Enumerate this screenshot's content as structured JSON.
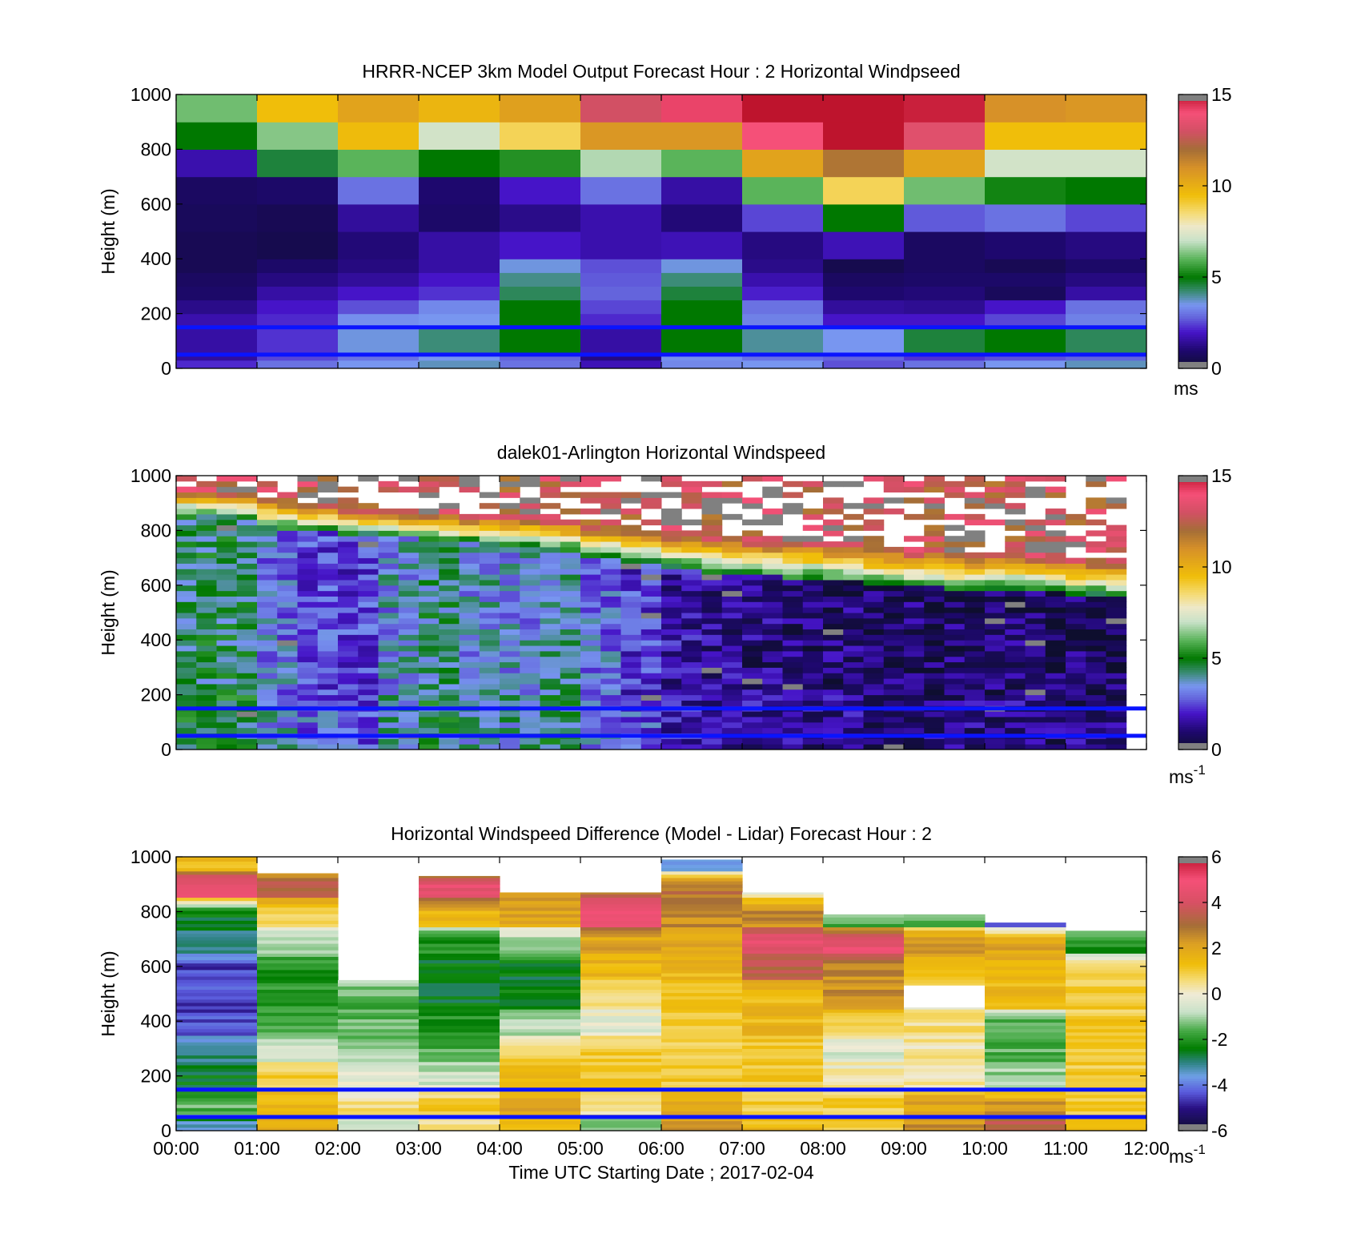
{
  "chart_data": [
    {
      "type": "heatmap",
      "title": "HRRR-NCEP 3km Model Output   Forecast Hour : 2 Horizontal Windpseed",
      "ylabel": "Height (m)",
      "ylim": [
        0,
        1000
      ],
      "yticks": [
        "0",
        "200",
        "400",
        "600",
        "800",
        "1000"
      ],
      "x_hours": [
        0,
        12
      ],
      "colorbar": {
        "ticks": [
          "0",
          "5",
          "10",
          "15"
        ],
        "range": [
          0,
          15
        ],
        "unit": "ms"
      },
      "reference_lines_m": [
        50,
        150
      ],
      "bands_m": [
        [
          0,
          30
        ],
        [
          30,
          50
        ],
        [
          50,
          150
        ],
        [
          150,
          200
        ],
        [
          200,
          250
        ],
        [
          250,
          300
        ],
        [
          300,
          350
        ],
        [
          350,
          400
        ],
        [
          400,
          500
        ],
        [
          500,
          600
        ],
        [
          600,
          700
        ],
        [
          700,
          800
        ],
        [
          800,
          900
        ],
        [
          900,
          1000
        ]
      ],
      "values": [
        [
          2.2,
          3.0,
          3.5,
          3.8,
          3.0,
          1.8,
          3.3,
          3.5,
          2.6,
          3.0,
          3.5,
          3.8
        ],
        [
          1.5,
          2.5,
          3.0,
          3.5,
          2.8,
          1.2,
          3.4,
          3.0,
          2.8,
          2.3,
          2.6,
          2.8
        ],
        [
          1.6,
          2.3,
          3.6,
          4.2,
          5.0,
          1.6,
          5.0,
          4.0,
          3.5,
          4.6,
          5.0,
          4.4
        ],
        [
          1.7,
          2.2,
          3.4,
          3.5,
          5.0,
          2.2,
          5.0,
          3.2,
          2.0,
          2.0,
          2.5,
          3.2
        ],
        [
          1.3,
          2.0,
          2.6,
          3.3,
          5.0,
          2.5,
          5.0,
          3.0,
          1.5,
          1.4,
          2.0,
          3.0
        ],
        [
          0.9,
          1.6,
          2.0,
          2.3,
          4.4,
          2.8,
          4.6,
          2.1,
          1.0,
          1.1,
          0.7,
          1.6
        ],
        [
          0.8,
          1.2,
          1.5,
          2.0,
          4.1,
          2.7,
          4.2,
          1.7,
          0.8,
          0.9,
          0.9,
          1.2
        ],
        [
          0.6,
          0.9,
          1.2,
          1.6,
          3.6,
          2.6,
          3.6,
          1.3,
          0.5,
          0.8,
          0.6,
          0.9
        ],
        [
          0.6,
          0.5,
          1.1,
          1.6,
          2.0,
          1.7,
          1.8,
          1.2,
          1.8,
          0.8,
          1.0,
          1.2
        ],
        [
          0.7,
          0.6,
          1.5,
          0.9,
          1.3,
          1.7,
          1.1,
          2.5,
          5.0,
          2.7,
          3.0,
          2.5
        ],
        [
          0.8,
          0.9,
          3.0,
          1.0,
          2.0,
          3.0,
          1.6,
          6.0,
          8.8,
          6.2,
          5.2,
          5.0
        ],
        [
          1.7,
          4.6,
          6.0,
          5.0,
          5.4,
          6.8,
          6.0,
          10.4,
          11.8,
          10.4,
          7.2,
          7.2
        ],
        [
          5.0,
          6.4,
          9.6,
          7.2,
          8.8,
          10.8,
          10.8,
          14.0,
          15.4,
          13.4,
          9.5,
          9.5
        ],
        [
          6.2,
          9.5,
          10.4,
          9.8,
          10.5,
          13.0,
          14.2,
          15.4,
          15.4,
          14.8,
          11.0,
          10.8
        ]
      ]
    },
    {
      "type": "heatmap",
      "title": "dalek01-Arlington  Horizontal Windspeed",
      "ylabel": "Height (m)",
      "ylim": [
        0,
        1000
      ],
      "yticks": [
        "0",
        "200",
        "400",
        "600",
        "800",
        "1000"
      ],
      "x_hours": [
        0,
        12
      ],
      "colorbar": {
        "ticks": [
          "0",
          "5",
          "10",
          "15"
        ],
        "range": [
          0,
          15
        ],
        "unit": "ms",
        "unit_exp": "-1"
      },
      "reference_lines_m": [
        50,
        150
      ],
      "time_bins": 48,
      "bin_minutes": 15,
      "data_end_hour": 11.75,
      "column_top_m": [
        1000,
        1000,
        1000,
        1000,
        1000,
        1000,
        1000,
        1000,
        1000,
        1000,
        1000,
        1000,
        1000,
        1000,
        1000,
        1000,
        1000,
        1000,
        1000,
        1000,
        1000,
        1000,
        1000,
        1000,
        1000,
        1000,
        1000,
        1000,
        1000,
        1000,
        1000,
        1000,
        1000,
        1000,
        1000,
        1000,
        1000,
        1000,
        1000,
        1000,
        1000,
        1000,
        1000,
        1000,
        1000,
        1000,
        1000,
        0
      ],
      "jet_top_m": [
        950,
        950,
        940,
        940,
        920,
        920,
        900,
        900,
        880,
        880,
        870,
        870,
        860,
        860,
        850,
        850,
        850,
        850,
        840,
        840,
        820,
        820,
        800,
        800,
        790,
        790,
        780,
        780,
        770,
        770,
        760,
        760,
        750,
        750,
        740,
        740,
        730,
        730,
        720,
        720,
        720,
        720,
        710,
        710,
        700,
        700,
        690,
        0
      ],
      "jet_base_m": [
        850,
        850,
        840,
        840,
        800,
        800,
        790,
        790,
        780,
        780,
        770,
        770,
        760,
        760,
        750,
        750,
        740,
        740,
        720,
        720,
        700,
        700,
        680,
        680,
        660,
        660,
        640,
        640,
        630,
        630,
        620,
        620,
        610,
        610,
        600,
        600,
        590,
        590,
        580,
        580,
        580,
        580,
        570,
        570,
        560,
        560,
        560,
        0
      ],
      "mean_low_m_s": [
        4.5,
        4.5,
        4.4,
        4.4,
        3.2,
        3.2,
        2.6,
        2.6,
        2.4,
        2.4,
        3.5,
        3.5,
        4.2,
        4.2,
        3.6,
        3.6,
        3.5,
        3.5,
        4.0,
        4.0,
        3.0,
        3.0,
        2.4,
        2.4,
        1.6,
        1.6,
        1.4,
        1.4,
        1.2,
        1.2,
        1.0,
        1.0,
        1.0,
        1.0,
        0.9,
        0.9,
        0.9,
        0.9,
        0.9,
        0.9,
        0.9,
        0.9,
        0.8,
        0.8,
        0.8,
        0.8,
        0.8,
        0
      ]
    },
    {
      "type": "heatmap",
      "title": "Horizontal Windspeed Difference (Model - Lidar) Forecast Hour : 2",
      "xlabel": "Time UTC  Starting Date ; 2017-02-04",
      "ylabel": "Height (m)",
      "ylim": [
        0,
        1000
      ],
      "yticks": [
        "0",
        "200",
        "400",
        "600",
        "800",
        "1000"
      ],
      "xticks": [
        "00:00",
        "01:00",
        "02:00",
        "03:00",
        "04:00",
        "05:00",
        "06:00",
        "07:00",
        "08:00",
        "09:00",
        "10:00",
        "11:00",
        "12:00"
      ],
      "colorbar": {
        "ticks": [
          "-6",
          "-4",
          "-2",
          "0",
          "2",
          "4",
          "6"
        ],
        "range": [
          -6,
          6
        ],
        "unit": "ms",
        "unit_exp": "-1"
      },
      "reference_lines_m": [
        50,
        150
      ],
      "column_top_m": [
        1000,
        940,
        550,
        930,
        870,
        870,
        990,
        870,
        790,
        790,
        760,
        730
      ],
      "bands_m": [
        [
          0,
          50
        ],
        [
          50,
          150
        ],
        [
          150,
          250
        ],
        [
          250,
          350
        ],
        [
          350,
          450
        ],
        [
          450,
          550
        ],
        [
          550,
          650
        ],
        [
          650,
          750
        ],
        [
          750,
          850
        ],
        [
          850,
          950
        ],
        [
          950,
          1000
        ]
      ],
      "values": [
        [
          -3.5,
          1.5,
          -1.0,
          0.5,
          1.5,
          -1.5,
          2.5,
          1.5,
          1.0,
          2.5,
          3.5,
          1.5
        ],
        [
          -1.5,
          1.5,
          0.5,
          1.0,
          2.0,
          0.5,
          2.0,
          1.0,
          1.0,
          2.0,
          2.5,
          1.0
        ],
        [
          -2.5,
          1.0,
          -0.3,
          -0.5,
          1.5,
          1.0,
          1.0,
          1.0,
          0.5,
          0.3,
          -1.0,
          1.0
        ],
        [
          -3.0,
          -0.5,
          -1.0,
          -1.5,
          1.0,
          1.0,
          1.0,
          1.0,
          -0.5,
          0.3,
          -1.5,
          1.0
        ],
        [
          -4.5,
          -1.5,
          -1.5,
          -2.0,
          -0.8,
          -0.3,
          1.0,
          1.5,
          1.0,
          0.5,
          -1.5,
          1.0
        ],
        [
          -4.5,
          -2.0,
          -1.5,
          -2.5,
          -2.5,
          0.5,
          1.2,
          1.5,
          2.5,
          0,
          1.5,
          1.0
        ],
        [
          -4.5,
          -2.0,
          0,
          -2.5,
          -2.5,
          1.5,
          1.5,
          3.5,
          2.5,
          1.5,
          1.5,
          1.0
        ],
        [
          -3.0,
          -1.0,
          0,
          -2.0,
          -1.0,
          2.0,
          2.0,
          4.5,
          4.5,
          2.5,
          2.0,
          -2.0
        ],
        [
          -2.5,
          1.0,
          0,
          1.5,
          2.0,
          4.5,
          2.5,
          2.5,
          -1.5,
          -1.5,
          -4.0,
          0
        ],
        [
          4.5,
          3.5,
          0,
          4.5,
          2.5,
          3.0,
          3.0,
          0,
          0,
          0,
          0,
          0
        ],
        [
          1.5,
          0,
          0,
          0,
          0,
          0,
          -3.5,
          0,
          0,
          0,
          0,
          0
        ]
      ]
    }
  ]
}
